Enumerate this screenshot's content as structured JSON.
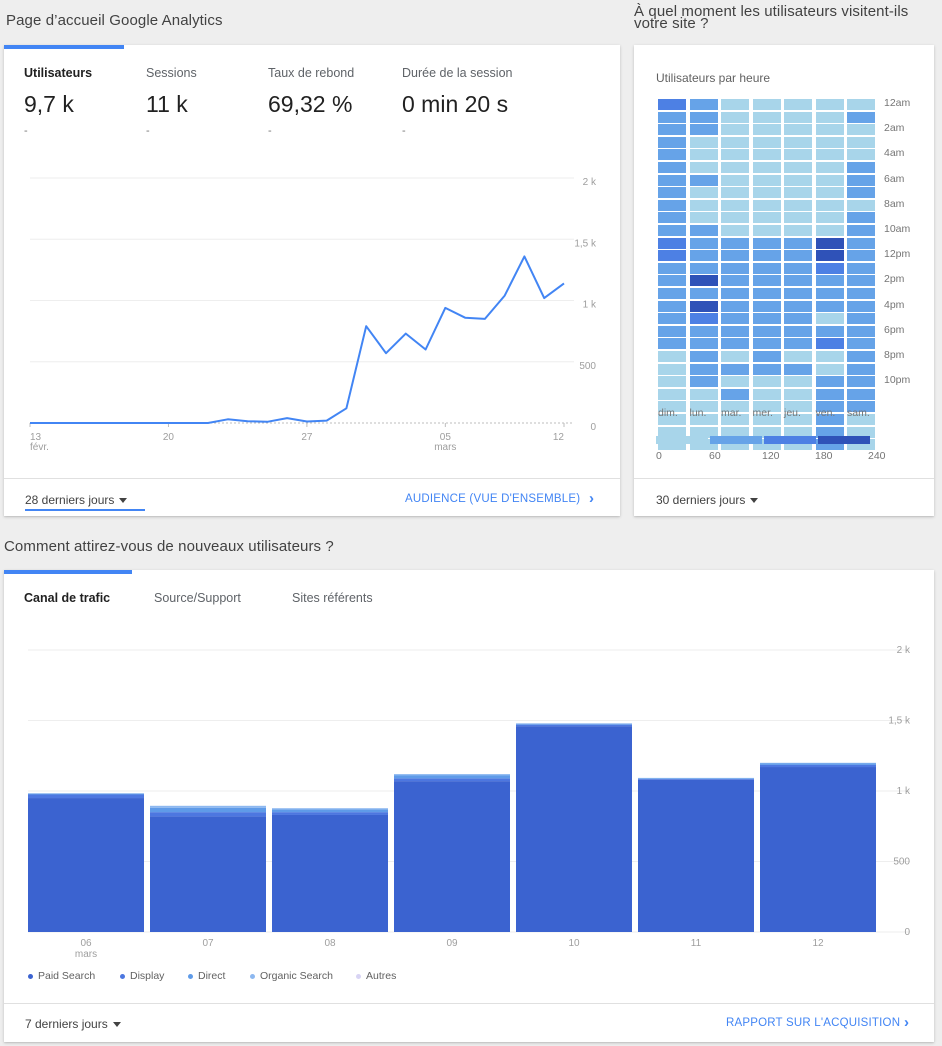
{
  "page": {
    "home_title": "Page d’accueil Google Analytics",
    "when_title": "À quel moment les utilisateurs visitent-ils votre site ?",
    "acq_title": "Comment attirez-vous de nouveaux utilisateurs ?"
  },
  "overview": {
    "metrics": [
      {
        "label": "Utilisateurs",
        "value": "9,7 k",
        "delta": "-"
      },
      {
        "label": "Sessions",
        "value": "11 k",
        "delta": "-"
      },
      {
        "label": "Taux de rebond",
        "value": "69,32 %",
        "delta": "-"
      },
      {
        "label": "Durée de la session",
        "value": "0 min 20 s",
        "delta": "-"
      }
    ],
    "date_range": "28 derniers jours",
    "report_link": "AUDIENCE (VUE D'ENSEMBLE)"
  },
  "line_chart": {
    "y_ticks": [
      "2 k",
      "1,5 k",
      "1 k",
      "500",
      "0"
    ],
    "x_ticks": [
      {
        "day": "13",
        "month": "févr."
      },
      {
        "day": "20",
        "month": ""
      },
      {
        "day": "27",
        "month": ""
      },
      {
        "day": "05",
        "month": "mars"
      },
      {
        "day": "12",
        "month": ""
      }
    ]
  },
  "heatmap": {
    "title": "Utilisateurs par heure",
    "hours": [
      "12am",
      "2am",
      "4am",
      "6am",
      "8am",
      "10am",
      "12pm",
      "2pm",
      "4pm",
      "6pm",
      "8pm",
      "10pm"
    ],
    "days": [
      "dim.",
      "lun.",
      "mar.",
      "mer.",
      "jeu.",
      "ven.",
      "sam."
    ],
    "scale": [
      "0",
      "60",
      "120",
      "180",
      "240"
    ],
    "colors": {
      "l": "#a8d5ea",
      "m": "#66a3e8",
      "h": "#4d80e4",
      "d": "#2f52b8"
    },
    "rows": [
      "hmlllll",
      "mmllllm",
      "mmlllll",
      "mllllll",
      "mllllll",
      "mlllllm",
      "mmllllm",
      "mlllllm",
      "mllllll",
      "mlllllm",
      "mmllllm",
      "hmmmmdm",
      "hmmmmdm",
      "mmmmmhm",
      "mdmmmmm",
      "mmmmmmm",
      "mdmmmmm",
      "mhmmmlm",
      "mmmmmmm",
      "mmmmmhm",
      "lmlmllm",
      "lmmmmlm",
      "lmlllmm",
      "llmllmm",
      "lllllmm",
      "lllllml",
      "lllllml",
      "lllllml"
    ],
    "date_range": "30 derniers jours"
  },
  "acquisition": {
    "tabs": [
      "Canal de trafic",
      "Source/Support",
      "Sites référents"
    ],
    "legend": [
      {
        "name": "Paid Search",
        "color": "#3b63d0"
      },
      {
        "name": "Display",
        "color": "#4d77e0"
      },
      {
        "name": "Direct",
        "color": "#5f9be8"
      },
      {
        "name": "Organic Search",
        "color": "#8db8f0"
      },
      {
        "name": "Autres",
        "color": "#d8d4f4"
      }
    ],
    "date_range": "7 derniers jours",
    "report_link": "RAPPORT SUR L'ACQUISITION",
    "y_ticks": [
      "2 k",
      "1,5 k",
      "1 k",
      "500",
      "0"
    ]
  },
  "chart_data": [
    {
      "type": "line",
      "title": "",
      "xlabel": "",
      "ylabel": "",
      "ylim": [
        0,
        2000
      ],
      "x": [
        "13 févr.",
        "14",
        "15",
        "16",
        "17",
        "18",
        "19",
        "20",
        "21",
        "22",
        "23",
        "24",
        "25",
        "26",
        "27",
        "28",
        "01 mars",
        "02",
        "03",
        "04",
        "05",
        "06",
        "07",
        "08",
        "09",
        "10",
        "11",
        "12"
      ],
      "series": [
        {
          "values": [
            0,
            0,
            0,
            0,
            0,
            0,
            0,
            0,
            0,
            0,
            30,
            15,
            10,
            40,
            12,
            20,
            120,
            790,
            570,
            730,
            600,
            940,
            860,
            850,
            1040,
            1360,
            1020,
            1140
          ]
        }
      ],
      "grid": true
    },
    {
      "type": "bar",
      "title": "",
      "xlabel": "",
      "ylabel": "",
      "ylim": [
        0,
        2000
      ],
      "categories": [
        "06 mars",
        "07",
        "08",
        "09",
        "10",
        "11",
        "12"
      ],
      "series": [
        {
          "name": "Paid Search",
          "values": [
            950,
            820,
            830,
            1070,
            1460,
            1080,
            1170
          ]
        },
        {
          "name": "Display",
          "values": [
            25,
            30,
            20,
            20,
            10,
            5,
            15
          ]
        },
        {
          "name": "Direct",
          "values": [
            5,
            30,
            20,
            20,
            5,
            5,
            10
          ]
        },
        {
          "name": "Organic Search",
          "values": [
            5,
            15,
            8,
            10,
            5,
            3,
            5
          ]
        },
        {
          "name": "Autres",
          "values": [
            0,
            0,
            0,
            0,
            0,
            0,
            0
          ]
        }
      ],
      "grid": true,
      "legend": "bottom"
    }
  ]
}
